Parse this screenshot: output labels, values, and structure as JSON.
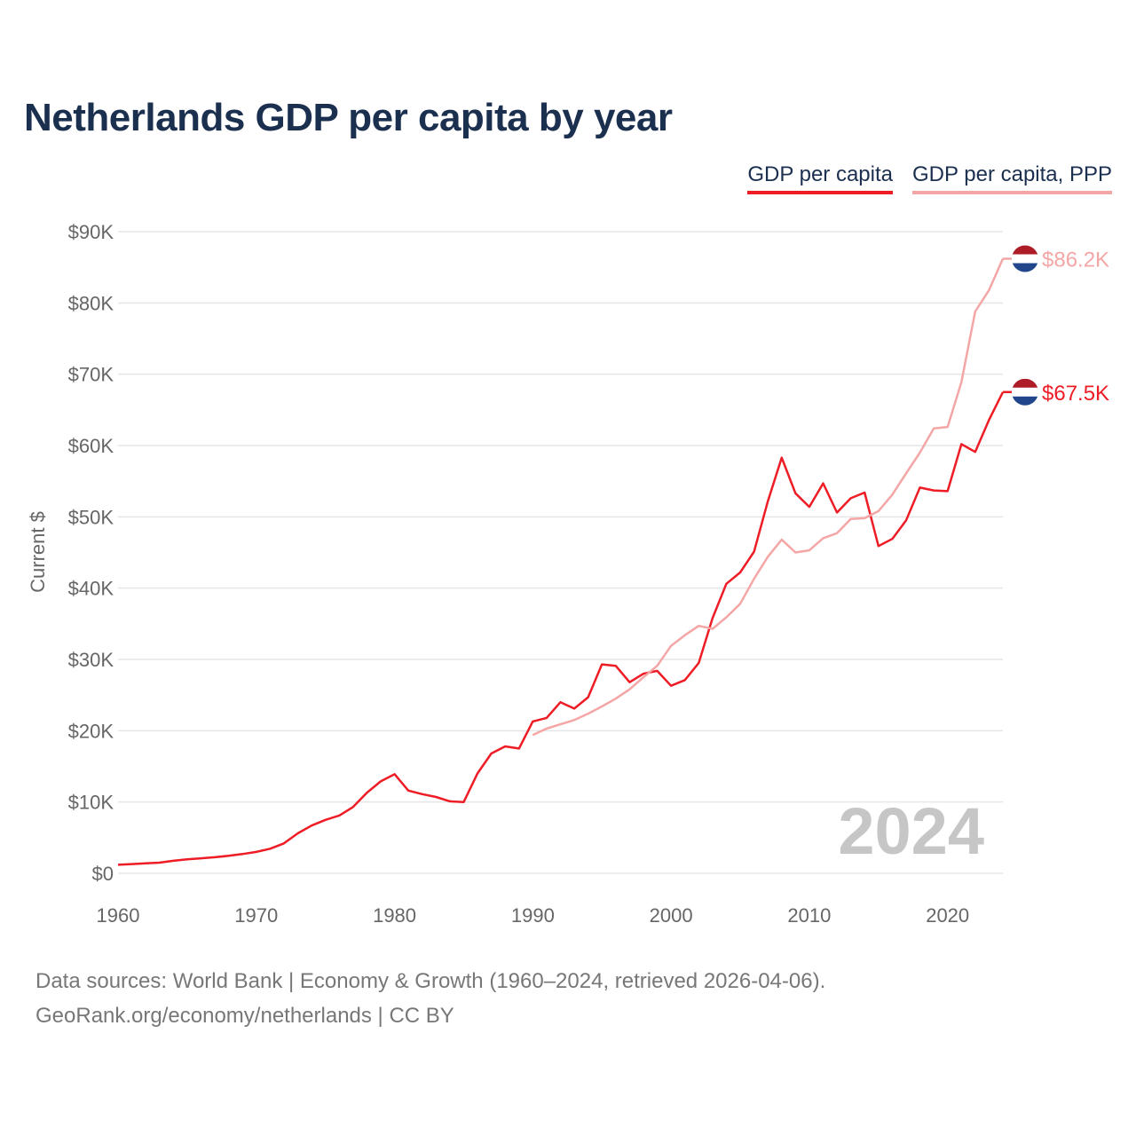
{
  "title": "Netherlands GDP per capita by year",
  "legend": {
    "gdp": "GDP per capita",
    "ppp": "GDP per capita, PPP"
  },
  "colors": {
    "gdp": "#ee1c25",
    "ppp": "#f4a6a6",
    "title": "#1b2f4f",
    "flag_red": "#ae1c28",
    "flag_white": "#ffffff",
    "flag_blue": "#21468b"
  },
  "icons": {
    "flag": "netherlands-flag-icon"
  },
  "footer": {
    "line1": "Data sources: World Bank | Economy & Growth (1960–2024, retrieved 2026-04-06).",
    "line2": "GeoRank.org/economy/netherlands | CC BY"
  },
  "chart_data": {
    "type": "line",
    "title": "Netherlands GDP per capita by year",
    "xlabel": "",
    "ylabel": "Current $",
    "xlim": [
      1960,
      2024
    ],
    "ylim": [
      0,
      90000
    ],
    "grid": true,
    "legend_position": "top-right",
    "watermark_year": "2024",
    "x_ticks": [
      {
        "value": 1960,
        "label": "1960"
      },
      {
        "value": 1970,
        "label": "1970"
      },
      {
        "value": 1980,
        "label": "1980"
      },
      {
        "value": 1990,
        "label": "1990"
      },
      {
        "value": 2000,
        "label": "2000"
      },
      {
        "value": 2010,
        "label": "2010"
      },
      {
        "value": 2020,
        "label": "2020"
      }
    ],
    "y_ticks": [
      {
        "value": 0,
        "label": "$0"
      },
      {
        "value": 10000,
        "label": "$10K"
      },
      {
        "value": 20000,
        "label": "$20K"
      },
      {
        "value": 30000,
        "label": "$30K"
      },
      {
        "value": 40000,
        "label": "$40K"
      },
      {
        "value": 50000,
        "label": "$50K"
      },
      {
        "value": 60000,
        "label": "$60K"
      },
      {
        "value": 70000,
        "label": "$70K"
      },
      {
        "value": 80000,
        "label": "$80K"
      },
      {
        "value": 90000,
        "label": "$90K"
      }
    ],
    "series": [
      {
        "name": "GDP per capita",
        "key": "gdp",
        "end_label": "$67.5K",
        "points": [
          [
            1960,
            1200
          ],
          [
            1961,
            1300
          ],
          [
            1962,
            1400
          ],
          [
            1963,
            1500
          ],
          [
            1964,
            1750
          ],
          [
            1965,
            1950
          ],
          [
            1966,
            2100
          ],
          [
            1967,
            2250
          ],
          [
            1968,
            2450
          ],
          [
            1969,
            2700
          ],
          [
            1970,
            3000
          ],
          [
            1971,
            3450
          ],
          [
            1972,
            4200
          ],
          [
            1973,
            5600
          ],
          [
            1974,
            6700
          ],
          [
            1975,
            7500
          ],
          [
            1976,
            8100
          ],
          [
            1977,
            9300
          ],
          [
            1978,
            11300
          ],
          [
            1979,
            12900
          ],
          [
            1980,
            13900
          ],
          [
            1981,
            11600
          ],
          [
            1982,
            11100
          ],
          [
            1983,
            10700
          ],
          [
            1984,
            10100
          ],
          [
            1985,
            10000
          ],
          [
            1986,
            14000
          ],
          [
            1987,
            16800
          ],
          [
            1988,
            17800
          ],
          [
            1989,
            17500
          ],
          [
            1990,
            21300
          ],
          [
            1991,
            21800
          ],
          [
            1992,
            24000
          ],
          [
            1993,
            23100
          ],
          [
            1994,
            24700
          ],
          [
            1995,
            29300
          ],
          [
            1996,
            29100
          ],
          [
            1997,
            26800
          ],
          [
            1998,
            28000
          ],
          [
            1999,
            28400
          ],
          [
            2000,
            26300
          ],
          [
            2001,
            27100
          ],
          [
            2002,
            29500
          ],
          [
            2003,
            35800
          ],
          [
            2004,
            40600
          ],
          [
            2005,
            42200
          ],
          [
            2006,
            45100
          ],
          [
            2007,
            52200
          ],
          [
            2008,
            58300
          ],
          [
            2009,
            53300
          ],
          [
            2010,
            51400
          ],
          [
            2011,
            54700
          ],
          [
            2012,
            50600
          ],
          [
            2013,
            52600
          ],
          [
            2014,
            53400
          ],
          [
            2015,
            45900
          ],
          [
            2016,
            46900
          ],
          [
            2017,
            49500
          ],
          [
            2018,
            54100
          ],
          [
            2019,
            53700
          ],
          [
            2020,
            53600
          ],
          [
            2021,
            60200
          ],
          [
            2022,
            59100
          ],
          [
            2023,
            63600
          ],
          [
            2024,
            67500
          ]
        ]
      },
      {
        "name": "GDP per capita, PPP",
        "key": "ppp",
        "end_label": "$86.2K",
        "points": [
          [
            1990,
            19400
          ],
          [
            1991,
            20300
          ],
          [
            1992,
            20900
          ],
          [
            1993,
            21500
          ],
          [
            1994,
            22400
          ],
          [
            1995,
            23400
          ],
          [
            1996,
            24500
          ],
          [
            1997,
            25800
          ],
          [
            1998,
            27500
          ],
          [
            1999,
            29100
          ],
          [
            2000,
            31900
          ],
          [
            2001,
            33400
          ],
          [
            2002,
            34700
          ],
          [
            2003,
            34300
          ],
          [
            2004,
            35900
          ],
          [
            2005,
            37800
          ],
          [
            2006,
            41300
          ],
          [
            2007,
            44400
          ],
          [
            2008,
            46800
          ],
          [
            2009,
            45000
          ],
          [
            2010,
            45300
          ],
          [
            2011,
            47000
          ],
          [
            2012,
            47700
          ],
          [
            2013,
            49700
          ],
          [
            2014,
            49800
          ],
          [
            2015,
            50800
          ],
          [
            2016,
            53100
          ],
          [
            2017,
            56100
          ],
          [
            2018,
            59000
          ],
          [
            2019,
            62400
          ],
          [
            2020,
            62600
          ],
          [
            2021,
            68900
          ],
          [
            2022,
            78800
          ],
          [
            2023,
            81800
          ],
          [
            2024,
            86200
          ]
        ]
      }
    ]
  }
}
